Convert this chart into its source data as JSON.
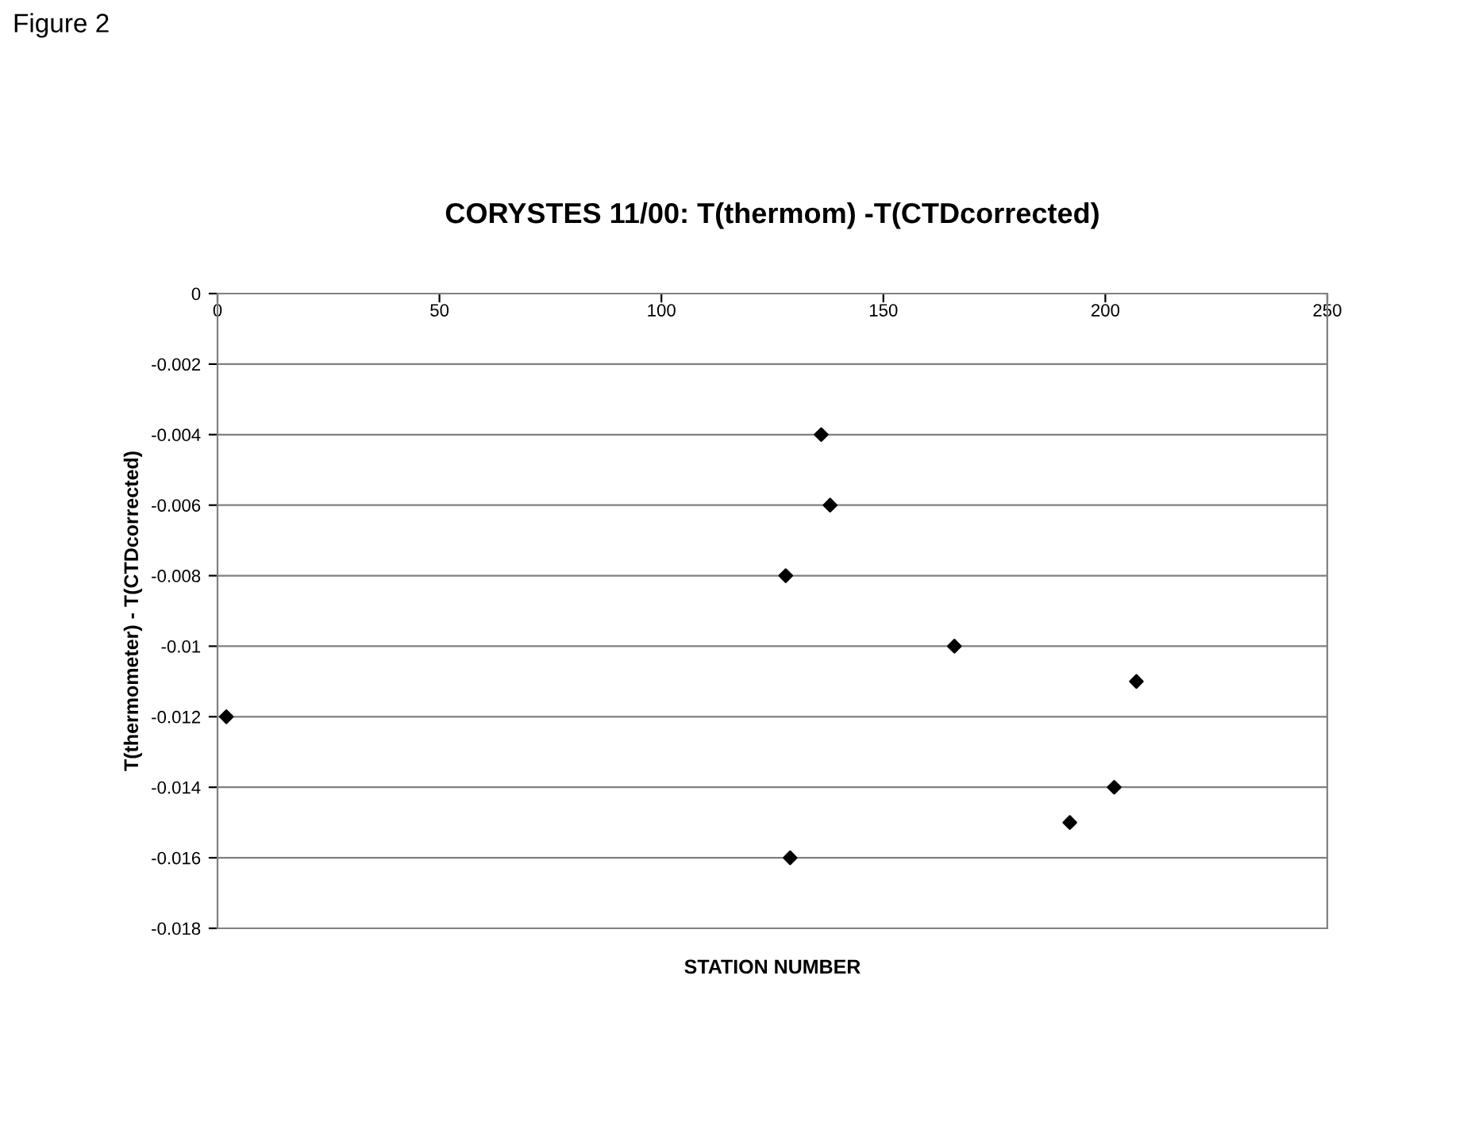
{
  "chart_data": {
    "type": "scatter",
    "title": "CORYSTES 11/00: T(thermom) -T(CTDcorrected)",
    "xlabel": "STATION NUMBER",
    "ylabel": "T(thermometer) - T(CTDcorrected)",
    "annotations": [
      "Figure 2"
    ],
    "series": [
      {
        "color": "#000000",
        "x": [
          2,
          136,
          138,
          128,
          166,
          207,
          202,
          192,
          129
        ],
        "values": [
          -0.012,
          -0.004,
          -0.006,
          -0.008,
          -0.01,
          -0.011,
          -0.014,
          -0.015,
          -0.016
        ]
      }
    ],
    "xlim": [
      0,
      250
    ],
    "xticks": [
      0,
      50,
      100,
      150,
      200,
      250
    ],
    "ylim": [
      -0.018,
      0
    ],
    "yticks": [
      -0.018,
      -0.016,
      -0.014,
      -0.012,
      -0.01,
      -0.008,
      -0.006,
      -0.004,
      -0.002,
      0
    ],
    "grid": "y",
    "marker": "diamond",
    "legend": false
  }
}
